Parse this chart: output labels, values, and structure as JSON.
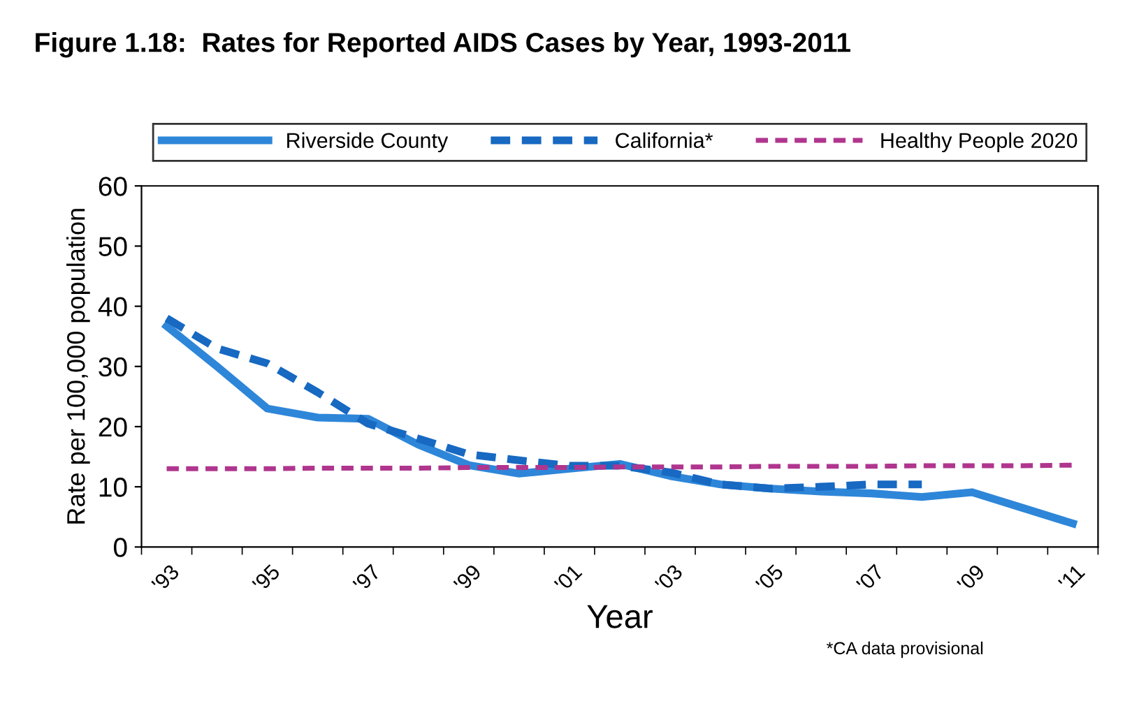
{
  "chart_data": {
    "type": "line",
    "title": "Figure 1.18:  Rates for Reported AIDS Cases by Year, 1993-2011",
    "xlabel": "Year",
    "ylabel": "Rate per 100,000 population",
    "categories": [
      "'93",
      null,
      "'95",
      null,
      "'97",
      null,
      "'99",
      null,
      "'01",
      null,
      "'03",
      null,
      "'05",
      null,
      "'07",
      null,
      "'09",
      null,
      "'11"
    ],
    "series": [
      {
        "name": "Riverside County",
        "color": "#2e86d9",
        "line_style": "solid",
        "values": [
          36.7,
          30,
          23,
          21.5,
          21.3,
          17,
          13.6,
          12.2,
          13,
          13.8,
          11.8,
          10.4,
          9.7,
          9.2,
          8.9,
          8.3,
          9.1,
          6.5,
          3.9
        ]
      },
      {
        "name": "California*",
        "color": "#1769c2",
        "line_style": "dashed",
        "values": [
          38,
          33,
          30.5,
          25.7,
          20.5,
          18,
          15.4,
          14.4,
          13.5,
          13.5,
          12.4,
          10.4,
          9.7,
          10,
          10.4,
          10.4,
          null,
          null,
          null
        ]
      },
      {
        "name": "Healthy People 2020",
        "color": "#b0358e",
        "line_style": "dashed",
        "values": [
          13,
          13,
          13,
          13.1,
          13.1,
          13.1,
          13.2,
          13.2,
          13.2,
          13.3,
          13.3,
          13.3,
          13.4,
          13.4,
          13.4,
          13.5,
          13.5,
          13.5,
          13.6
        ]
      }
    ],
    "ylim": [
      0,
      60
    ],
    "yticks": [
      0,
      10,
      20,
      30,
      40,
      50,
      60
    ],
    "grid": false,
    "legend": "top",
    "marker": "none",
    "annotations": [
      "*CA data provisional"
    ]
  }
}
